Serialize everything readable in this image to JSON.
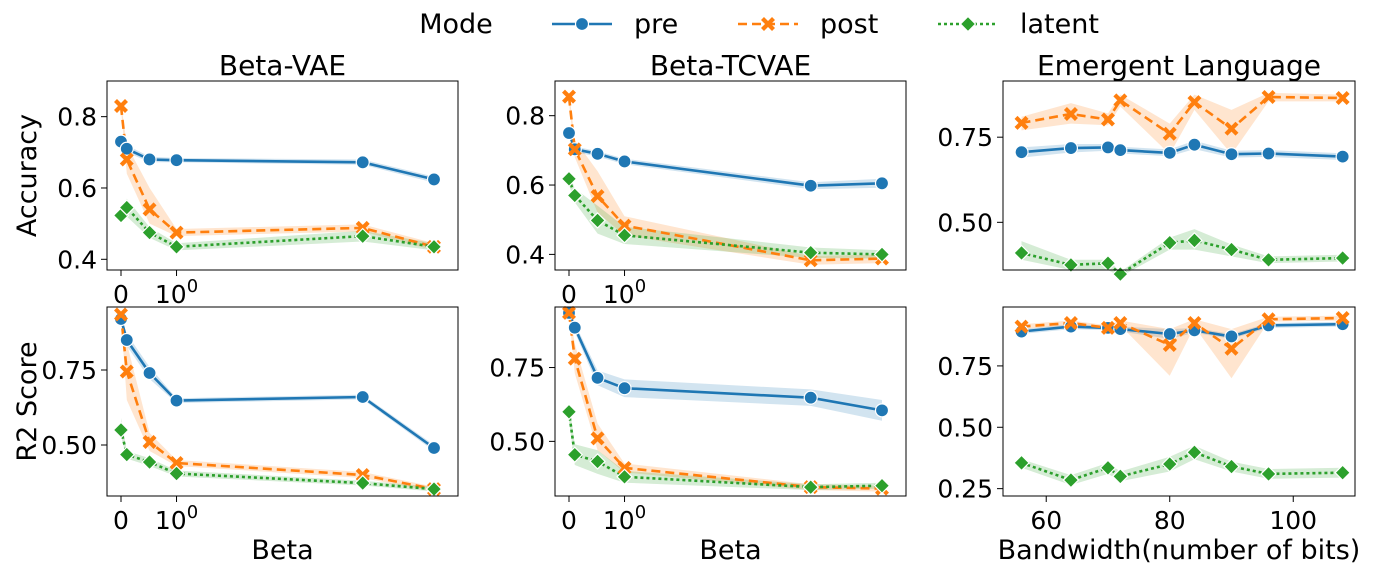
{
  "legend": {
    "title": "Mode",
    "entries": [
      {
        "key": "pre",
        "label": "pre"
      },
      {
        "key": "post",
        "label": "post"
      },
      {
        "key": "latent",
        "label": "latent"
      }
    ]
  },
  "colors": {
    "pre": "#1f77b4",
    "post": "#ff7f0e",
    "latent": "#2ca02c"
  },
  "chart_data": [
    {
      "type": "line",
      "id": "bvae-acc",
      "title": "Beta-VAE",
      "xlabel": "",
      "ylabel": "Accuracy",
      "xscale": "symlog",
      "xticks": [
        {
          "v": 0,
          "label": "0"
        },
        {
          "v": 1,
          "label": "10",
          "sup": "0"
        }
      ],
      "ylim": [
        0.37,
        0.9
      ],
      "yticks": [
        {
          "v": 0.4,
          "label": "0.4"
        },
        {
          "v": 0.6,
          "label": "0.6"
        },
        {
          "v": 0.8,
          "label": "0.8"
        }
      ],
      "x": [
        0,
        0.1,
        0.5,
        1,
        8,
        15
      ],
      "series": [
        {
          "name": "pre",
          "values": [
            0.73,
            0.71,
            0.68,
            0.678,
            0.672,
            0.624
          ],
          "lo": [
            0.72,
            0.7,
            0.672,
            0.672,
            0.665,
            0.615
          ],
          "hi": [
            0.74,
            0.72,
            0.688,
            0.684,
            0.68,
            0.632
          ]
        },
        {
          "name": "post",
          "values": [
            0.83,
            0.68,
            0.54,
            0.475,
            0.488,
            0.435
          ],
          "lo": [
            0.82,
            0.64,
            0.5,
            0.465,
            0.478,
            0.425
          ],
          "hi": [
            0.84,
            0.72,
            0.6,
            0.485,
            0.498,
            0.445
          ]
        },
        {
          "name": "latent",
          "values": [
            0.523,
            0.545,
            0.475,
            0.435,
            0.465,
            0.435
          ],
          "lo": [
            0.51,
            0.52,
            0.46,
            0.425,
            0.45,
            0.425
          ],
          "hi": [
            0.54,
            0.57,
            0.49,
            0.445,
            0.48,
            0.445
          ]
        }
      ]
    },
    {
      "type": "line",
      "id": "btcvae-acc",
      "title": "Beta-TCVAE",
      "xlabel": "",
      "ylabel": "",
      "xscale": "symlog",
      "xticks": [
        {
          "v": 0,
          "label": "0"
        },
        {
          "v": 1,
          "label": "10",
          "sup": "0"
        }
      ],
      "ylim": [
        0.355,
        0.9
      ],
      "yticks": [
        {
          "v": 0.4,
          "label": "0.4"
        },
        {
          "v": 0.6,
          "label": "0.6"
        },
        {
          "v": 0.8,
          "label": "0.8"
        }
      ],
      "x": [
        0,
        0.1,
        0.5,
        1,
        8,
        15
      ],
      "series": [
        {
          "name": "pre",
          "values": [
            0.75,
            0.703,
            0.69,
            0.668,
            0.598,
            0.605
          ],
          "lo": [
            0.74,
            0.695,
            0.682,
            0.66,
            0.588,
            0.592
          ],
          "hi": [
            0.76,
            0.711,
            0.698,
            0.676,
            0.608,
            0.618
          ]
        },
        {
          "name": "post",
          "values": [
            0.855,
            0.703,
            0.568,
            0.483,
            0.383,
            0.388
          ],
          "lo": [
            0.84,
            0.68,
            0.52,
            0.455,
            0.37,
            0.375
          ],
          "hi": [
            0.87,
            0.73,
            0.64,
            0.51,
            0.395,
            0.4
          ]
        },
        {
          "name": "latent",
          "values": [
            0.618,
            0.57,
            0.498,
            0.455,
            0.405,
            0.4
          ],
          "lo": [
            0.6,
            0.55,
            0.46,
            0.43,
            0.39,
            0.388
          ],
          "hi": [
            0.635,
            0.59,
            0.54,
            0.48,
            0.42,
            0.412
          ]
        }
      ]
    },
    {
      "type": "line",
      "id": "el-acc",
      "title": "Emergent Language",
      "xlabel": "",
      "ylabel": "",
      "xscale": "linear",
      "xlim": [
        53,
        110
      ],
      "xticks": [],
      "ylim": [
        0.36,
        0.915
      ],
      "yticks": [
        {
          "v": 0.5,
          "label": "0.50"
        },
        {
          "v": 0.75,
          "label": "0.75"
        }
      ],
      "x": [
        56,
        64,
        70,
        72,
        80,
        84,
        90,
        96,
        108
      ],
      "series": [
        {
          "name": "pre",
          "values": [
            0.706,
            0.718,
            0.72,
            0.712,
            0.704,
            0.728,
            0.7,
            0.702,
            0.693
          ],
          "lo": [
            0.69,
            0.705,
            0.71,
            0.702,
            0.694,
            0.715,
            0.69,
            0.692,
            0.683
          ],
          "hi": [
            0.72,
            0.73,
            0.73,
            0.722,
            0.714,
            0.74,
            0.71,
            0.712,
            0.703
          ]
        },
        {
          "name": "post",
          "values": [
            0.792,
            0.818,
            0.802,
            0.858,
            0.76,
            0.853,
            0.775,
            0.868,
            0.865
          ],
          "lo": [
            0.77,
            0.79,
            0.785,
            0.84,
            0.7,
            0.83,
            0.7,
            0.855,
            0.855
          ],
          "hi": [
            0.81,
            0.85,
            0.82,
            0.875,
            0.79,
            0.875,
            0.83,
            0.88,
            0.875
          ]
        },
        {
          "name": "latent",
          "values": [
            0.41,
            0.375,
            0.38,
            0.348,
            0.44,
            0.447,
            0.42,
            0.39,
            0.395
          ],
          "lo": [
            0.39,
            0.36,
            0.36,
            0.34,
            0.42,
            0.42,
            0.4,
            0.38,
            0.385
          ],
          "hi": [
            0.445,
            0.39,
            0.39,
            0.355,
            0.455,
            0.48,
            0.435,
            0.4,
            0.405
          ]
        }
      ]
    },
    {
      "type": "line",
      "id": "bvae-r2",
      "title": "",
      "xlabel": "Beta",
      "ylabel": "R2 Score",
      "xscale": "symlog",
      "xticks": [
        {
          "v": 0,
          "label": "0"
        },
        {
          "v": 1,
          "label": "10",
          "sup": "0"
        }
      ],
      "ylim": [
        0.33,
        0.96
      ],
      "yticks": [
        {
          "v": 0.5,
          "label": "0.50"
        },
        {
          "v": 0.75,
          "label": "0.75"
        }
      ],
      "x": [
        0,
        0.1,
        0.5,
        1,
        8,
        15
      ],
      "series": [
        {
          "name": "pre",
          "values": [
            0.92,
            0.85,
            0.74,
            0.648,
            0.66,
            0.49
          ],
          "lo": [
            0.91,
            0.83,
            0.72,
            0.64,
            0.652,
            0.48
          ],
          "hi": [
            0.93,
            0.87,
            0.76,
            0.656,
            0.668,
            0.5
          ]
        },
        {
          "name": "post",
          "values": [
            0.935,
            0.745,
            0.51,
            0.44,
            0.4,
            0.353
          ],
          "lo": [
            0.925,
            0.65,
            0.48,
            0.43,
            0.39,
            0.345
          ],
          "hi": [
            0.945,
            0.84,
            0.54,
            0.45,
            0.41,
            0.361
          ]
        },
        {
          "name": "latent",
          "values": [
            0.55,
            0.468,
            0.443,
            0.405,
            0.373,
            0.353
          ],
          "lo": [
            0.53,
            0.455,
            0.43,
            0.395,
            0.365,
            0.345
          ],
          "hi": [
            0.59,
            0.48,
            0.456,
            0.415,
            0.381,
            0.361
          ]
        }
      ]
    },
    {
      "type": "line",
      "id": "btcvae-r2",
      "title": "",
      "xlabel": "Beta",
      "ylabel": "",
      "xscale": "symlog",
      "xticks": [
        {
          "v": 0,
          "label": "0"
        },
        {
          "v": 1,
          "label": "10",
          "sup": "0"
        }
      ],
      "ylim": [
        0.315,
        0.955
      ],
      "yticks": [
        {
          "v": 0.5,
          "label": "0.50"
        },
        {
          "v": 0.75,
          "label": "0.75"
        }
      ],
      "x": [
        0,
        0.1,
        0.5,
        1,
        8,
        15
      ],
      "series": [
        {
          "name": "pre",
          "values": [
            0.935,
            0.885,
            0.715,
            0.68,
            0.648,
            0.605
          ],
          "lo": [
            0.925,
            0.87,
            0.69,
            0.65,
            0.62,
            0.57
          ],
          "hi": [
            0.945,
            0.9,
            0.74,
            0.71,
            0.676,
            0.64
          ]
        },
        {
          "name": "post",
          "values": [
            0.935,
            0.78,
            0.51,
            0.41,
            0.345,
            0.34
          ],
          "lo": [
            0.925,
            0.73,
            0.47,
            0.395,
            0.335,
            0.33
          ],
          "hi": [
            0.945,
            0.83,
            0.56,
            0.425,
            0.355,
            0.35
          ]
        },
        {
          "name": "latent",
          "values": [
            0.6,
            0.455,
            0.432,
            0.38,
            0.345,
            0.35
          ],
          "lo": [
            0.57,
            0.42,
            0.39,
            0.36,
            0.335,
            0.34
          ],
          "hi": [
            0.63,
            0.49,
            0.47,
            0.4,
            0.355,
            0.36
          ]
        }
      ]
    },
    {
      "type": "line",
      "id": "el-r2",
      "title": "",
      "xlabel": "Bandwidth(number of bits)",
      "ylabel": "",
      "xscale": "linear",
      "xlim": [
        53,
        110
      ],
      "xticks": [
        {
          "v": 60,
          "label": "60"
        },
        {
          "v": 80,
          "label": "80"
        },
        {
          "v": 100,
          "label": "100"
        }
      ],
      "ylim": [
        0.22,
        0.99
      ],
      "yticks": [
        {
          "v": 0.25,
          "label": "0.25"
        },
        {
          "v": 0.5,
          "label": "0.50"
        },
        {
          "v": 0.75,
          "label": "0.75"
        }
      ],
      "x": [
        56,
        64,
        70,
        72,
        80,
        84,
        90,
        96,
        108
      ],
      "series": [
        {
          "name": "pre",
          "values": [
            0.89,
            0.91,
            0.905,
            0.9,
            0.88,
            0.895,
            0.87,
            0.915,
            0.92
          ],
          "lo": [
            0.88,
            0.9,
            0.895,
            0.89,
            0.86,
            0.885,
            0.86,
            0.905,
            0.91
          ],
          "hi": [
            0.9,
            0.92,
            0.915,
            0.91,
            0.9,
            0.905,
            0.88,
            0.925,
            0.93
          ]
        },
        {
          "name": "post",
          "values": [
            0.91,
            0.925,
            0.905,
            0.925,
            0.835,
            0.925,
            0.82,
            0.94,
            0.945
          ],
          "lo": [
            0.9,
            0.915,
            0.895,
            0.915,
            0.71,
            0.91,
            0.7,
            0.93,
            0.935
          ],
          "hi": [
            0.92,
            0.935,
            0.915,
            0.935,
            0.9,
            0.94,
            0.9,
            0.95,
            0.955
          ]
        },
        {
          "name": "latent",
          "values": [
            0.355,
            0.285,
            0.335,
            0.3,
            0.35,
            0.398,
            0.34,
            0.31,
            0.315
          ],
          "lo": [
            0.335,
            0.265,
            0.31,
            0.28,
            0.32,
            0.37,
            0.32,
            0.29,
            0.295
          ],
          "hi": [
            0.37,
            0.305,
            0.355,
            0.32,
            0.38,
            0.425,
            0.36,
            0.33,
            0.335
          ]
        }
      ]
    }
  ]
}
